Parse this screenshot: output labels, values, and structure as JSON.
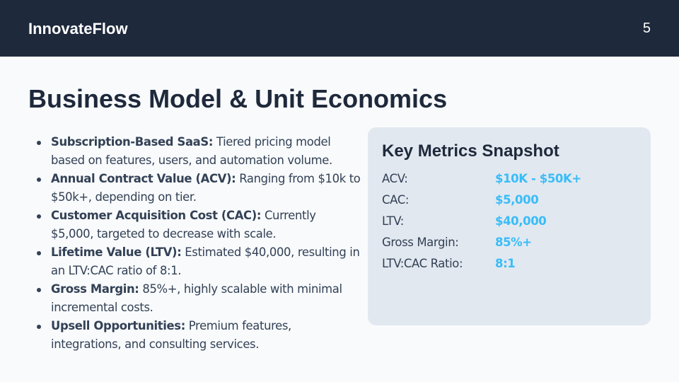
{
  "header": {
    "brand": "InnovateFlow",
    "page_number": "5"
  },
  "slide": {
    "title": "Business Model & Unit Economics",
    "bullets": [
      {
        "label": "Subscription-Based SaaS:",
        "text": " Tiered pricing model based on features, users, and automation volume."
      },
      {
        "label": "Annual Contract Value (ACV):",
        "text": " Ranging from $10k to $50k+, depending on tier."
      },
      {
        "label": "Customer Acquisition Cost (CAC):",
        "text": " Currently $5,000, targeted to decrease with scale."
      },
      {
        "label": "Lifetime Value (LTV):",
        "text": " Estimated $40,000, resulting in an LTV:CAC ratio of 8:1."
      },
      {
        "label": "Gross Margin:",
        "text": " 85%+, highly scalable with minimal incremental costs."
      },
      {
        "label": "Upsell Opportunities:",
        "text": " Premium features, integrations, and consulting services."
      }
    ]
  },
  "metrics_card": {
    "title": "Key Metrics Snapshot",
    "rows": [
      {
        "label": "ACV:",
        "value": "$10K - $50K+"
      },
      {
        "label": "CAC:",
        "value": "$5,000"
      },
      {
        "label": "LTV:",
        "value": "$40,000"
      },
      {
        "label": "Gross Margin:",
        "value": "85%+"
      },
      {
        "label": "LTV:CAC Ratio:",
        "value": "8:1"
      }
    ]
  },
  "colors": {
    "header_bg": "#1e293b",
    "page_bg": "#f8fafc",
    "card_bg": "#e2e8f0",
    "accent": "#38bdf8",
    "body_text": "#334155",
    "title_text": "#1e293b"
  }
}
